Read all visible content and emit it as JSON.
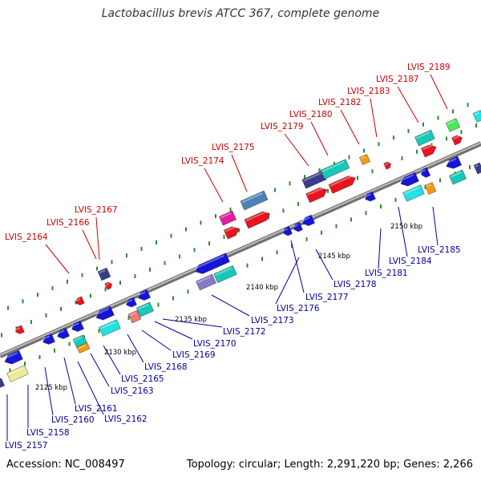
{
  "title": "Lactobacillus brevis ATCC 367, complete genome",
  "footer": {
    "accession": "Accession: NC_008497",
    "summary": "Topology: circular; Length: 2,291,220 bp; Genes: 2,266"
  },
  "colors": {
    "upper_label": "#cc0000",
    "lower_label": "#000099",
    "backbone": "#8c8c8c",
    "tick": "#2d8a2d"
  },
  "scale_labels": [
    "2125 kbp",
    "2130 kbp",
    "2135 kbp",
    "2140 kbp",
    "2145 kbp",
    "2150 kbp"
  ],
  "upper_labels": [
    "LVIS_2164",
    "LVIS_2166",
    "LVIS_2167",
    "LVIS_2174",
    "LVIS_2175",
    "LVIS_2179",
    "LVIS_2180",
    "LVIS_2182",
    "LVIS_2183",
    "LVIS_2187",
    "LVIS_2189"
  ],
  "lower_labels": [
    "LVIS_2157",
    "LVIS_2158",
    "LVIS_2160",
    "LVIS_2161",
    "LVIS_2162",
    "LVIS_2163",
    "LVIS_2165",
    "LVIS_2168",
    "LVIS_2169",
    "LVIS_2170",
    "LVIS_2172",
    "LVIS_2173",
    "LVIS_2176",
    "LVIS_2177",
    "LVIS_2178",
    "LVIS_2181",
    "LVIS_2184",
    "LVIS_2185"
  ]
}
